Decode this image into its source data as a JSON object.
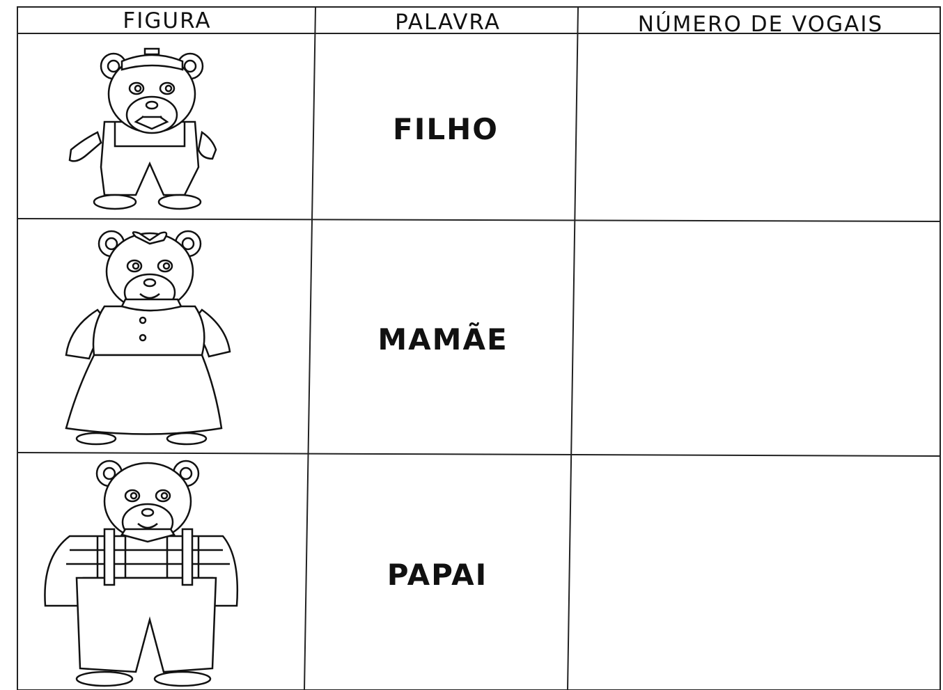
{
  "table": {
    "headers": [
      "FIGURA",
      "PALAVRA",
      "NÚMERO DE VOGAIS"
    ],
    "rows": [
      {
        "palavra": "FILHO"
      },
      {
        "palavra": "MAMÃE"
      },
      {
        "palavra": "PAPAI"
      }
    ]
  }
}
